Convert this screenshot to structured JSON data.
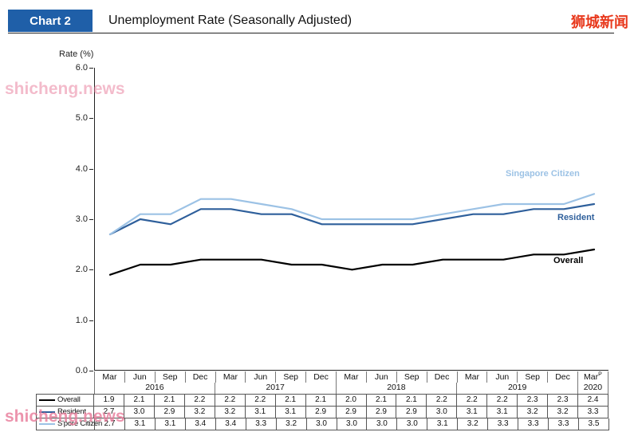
{
  "header": {
    "badge_label": "Chart 2",
    "title": "Unemployment Rate (Seasonally Adjusted)",
    "brand": "狮城新闻"
  },
  "watermark": {
    "text": "shicheng.news"
  },
  "chart_data": {
    "type": "line",
    "title": "Unemployment Rate (Seasonally Adjusted)",
    "ylabel": "Rate (%)",
    "ylim": [
      0.0,
      6.0
    ],
    "ytick_labels": [
      "6.0",
      "5.0",
      "4.0",
      "3.0",
      "2.0",
      "1.0",
      "0.0"
    ],
    "grid": false,
    "legend_position": "labels-at-line-ends",
    "x_tick_months": [
      {
        "label": "Mar"
      },
      {
        "label": "Jun"
      },
      {
        "label": "Sep"
      },
      {
        "label": "Dec"
      },
      {
        "label": "Mar"
      },
      {
        "label": "Jun"
      },
      {
        "label": "Sep"
      },
      {
        "label": "Dec"
      },
      {
        "label": "Mar"
      },
      {
        "label": "Jun"
      },
      {
        "label": "Sep"
      },
      {
        "label": "Dec"
      },
      {
        "label": "Mar"
      },
      {
        "label": "Jun"
      },
      {
        "label": "Sep"
      },
      {
        "label": "Dec"
      },
      {
        "label": "Mar",
        "sup": "P"
      }
    ],
    "x_year_groups": [
      {
        "label": "2016",
        "cols": 4
      },
      {
        "label": "2017",
        "cols": 4
      },
      {
        "label": "2018",
        "cols": 4
      },
      {
        "label": "2019",
        "cols": 4
      },
      {
        "label": "2020",
        "cols": 1
      }
    ],
    "series": [
      {
        "name": "Overall",
        "color": "#000000",
        "values": [
          1.9,
          2.1,
          2.1,
          2.2,
          2.2,
          2.2,
          2.1,
          2.1,
          2.0,
          2.1,
          2.1,
          2.2,
          2.2,
          2.2,
          2.3,
          2.3,
          2.4
        ]
      },
      {
        "name": "Resident",
        "color": "#2e5f9b",
        "values": [
          2.7,
          3.0,
          2.9,
          3.2,
          3.2,
          3.1,
          3.1,
          2.9,
          2.9,
          2.9,
          2.9,
          3.0,
          3.1,
          3.1,
          3.2,
          3.2,
          3.3
        ]
      },
      {
        "name": "Singapore Citizen",
        "color": "#9cc2e5",
        "values": [
          2.7,
          3.1,
          3.1,
          3.4,
          3.4,
          3.3,
          3.2,
          3.0,
          3.0,
          3.0,
          3.0,
          3.1,
          3.2,
          3.3,
          3.3,
          3.3,
          3.5
        ]
      }
    ]
  },
  "table": {
    "row_labels": [
      "Overall",
      "Resident",
      "S'pore Citizen"
    ]
  }
}
